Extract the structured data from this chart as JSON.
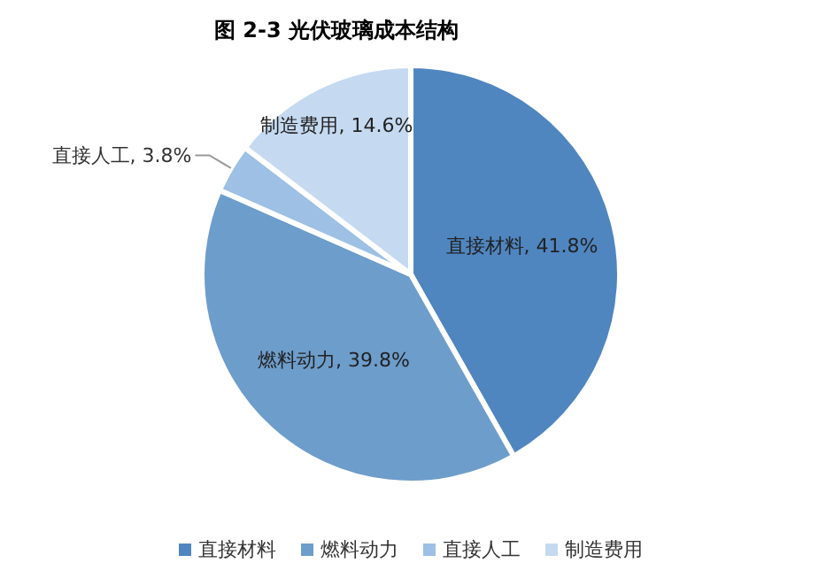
{
  "chart_data": {
    "type": "pie",
    "title": "图  2-3 光伏玻璃成本结构",
    "categories": [
      "直接材料",
      "燃料动力",
      "直接人工",
      "制造费用"
    ],
    "values": [
      41.8,
      39.8,
      3.8,
      14.6
    ],
    "colors": [
      "#4f86c0",
      "#6d9dcb",
      "#9dc0e4",
      "#c5daf0"
    ],
    "value_labels": [
      "直接材料, 41.8%",
      "燃料动力, 39.8%",
      "直接人工, 3.8%",
      "制造费用, 14.6%"
    ],
    "legend": "bottom"
  }
}
